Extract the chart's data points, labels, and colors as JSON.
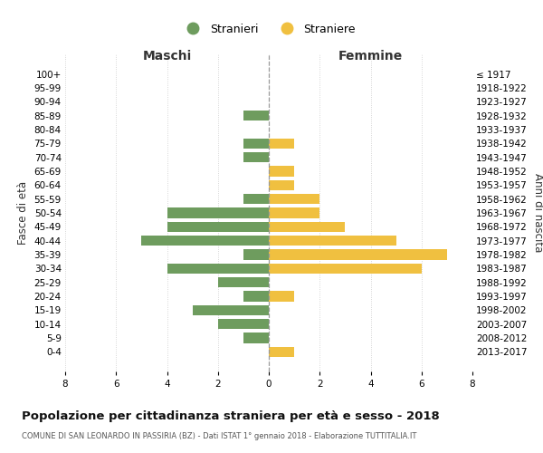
{
  "age_groups": [
    "0-4",
    "5-9",
    "10-14",
    "15-19",
    "20-24",
    "25-29",
    "30-34",
    "35-39",
    "40-44",
    "45-49",
    "50-54",
    "55-59",
    "60-64",
    "65-69",
    "70-74",
    "75-79",
    "80-84",
    "85-89",
    "90-94",
    "95-99",
    "100+"
  ],
  "birth_years": [
    "2013-2017",
    "2008-2012",
    "2003-2007",
    "1998-2002",
    "1993-1997",
    "1988-1992",
    "1983-1987",
    "1978-1982",
    "1973-1977",
    "1968-1972",
    "1963-1967",
    "1958-1962",
    "1953-1957",
    "1948-1952",
    "1943-1947",
    "1938-1942",
    "1933-1937",
    "1928-1932",
    "1923-1927",
    "1918-1922",
    "≤ 1917"
  ],
  "maschi": [
    0,
    1,
    2,
    3,
    1,
    2,
    4,
    1,
    5,
    4,
    4,
    1,
    0,
    0,
    1,
    1,
    0,
    1,
    0,
    0,
    0
  ],
  "femmine": [
    1,
    0,
    0,
    0,
    1,
    0,
    6,
    7,
    5,
    3,
    2,
    2,
    1,
    1,
    0,
    1,
    0,
    0,
    0,
    0,
    0
  ],
  "male_color": "#6e9c5e",
  "female_color": "#f0c040",
  "title": "Popolazione per cittadinanza straniera per età e sesso - 2018",
  "subtitle": "COMUNE DI SAN LEONARDO IN PASSIRIA (BZ) - Dati ISTAT 1° gennaio 2018 - Elaborazione TUTTITALIA.IT",
  "ylabel_left": "Fasce di età",
  "ylabel_right": "Anni di nascita",
  "xlabel_left": "Maschi",
  "xlabel_right": "Femmine",
  "legend_stranieri": "Stranieri",
  "legend_straniere": "Straniere",
  "xlim": 8,
  "background_color": "#ffffff",
  "grid_color": "#cccccc"
}
